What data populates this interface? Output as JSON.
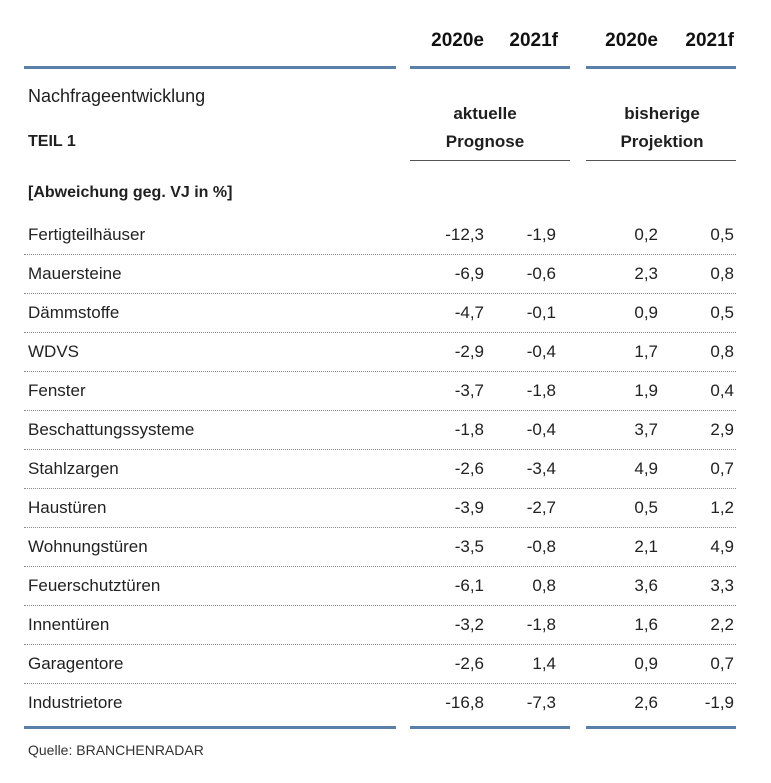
{
  "columns": {
    "current": {
      "year1": "2020e",
      "year2": "2021f",
      "label_line1": "aktuelle",
      "label_line2": "Prognose"
    },
    "previous": {
      "year1": "2020e",
      "year2": "2021f",
      "label_line1": "bisherige",
      "label_line2": "Projektion"
    }
  },
  "title": "Nachfrageentwicklung",
  "subtitle": "TEIL 1",
  "unit_label": "[Abweichung geg. VJ in %]",
  "rows": [
    {
      "label": "Fertigteilhäuser",
      "c2020": "-12,3",
      "c2021": "-1,9",
      "p2020": "0,2",
      "p2021": "0,5"
    },
    {
      "label": "Mauersteine",
      "c2020": "-6,9",
      "c2021": "-0,6",
      "p2020": "2,3",
      "p2021": "0,8"
    },
    {
      "label": "Dämmstoffe",
      "c2020": "-4,7",
      "c2021": "-0,1",
      "p2020": "0,9",
      "p2021": "0,5"
    },
    {
      "label": "WDVS",
      "c2020": "-2,9",
      "c2021": "-0,4",
      "p2020": "1,7",
      "p2021": "0,8"
    },
    {
      "label": "Fenster",
      "c2020": "-3,7",
      "c2021": "-1,8",
      "p2020": "1,9",
      "p2021": "0,4"
    },
    {
      "label": "Beschattungssysteme",
      "c2020": "-1,8",
      "c2021": "-0,4",
      "p2020": "3,7",
      "p2021": "2,9"
    },
    {
      "label": "Stahlzargen",
      "c2020": "-2,6",
      "c2021": "-3,4",
      "p2020": "4,9",
      "p2021": "0,7"
    },
    {
      "label": "Haustüren",
      "c2020": "-3,9",
      "c2021": "-2,7",
      "p2020": "0,5",
      "p2021": "1,2"
    },
    {
      "label": "Wohnungstüren",
      "c2020": "-3,5",
      "c2021": "-0,8",
      "p2020": "2,1",
      "p2021": "4,9"
    },
    {
      "label": "Feuerschutztüren",
      "c2020": "-6,1",
      "c2021": "0,8",
      "p2020": "3,6",
      "p2021": "3,3"
    },
    {
      "label": "Innentüren",
      "c2020": "-3,2",
      "c2021": "-1,8",
      "p2020": "1,6",
      "p2021": "2,2"
    },
    {
      "label": "Garagentore",
      "c2020": "-2,6",
      "c2021": "1,4",
      "p2020": "0,9",
      "p2021": "0,7"
    },
    {
      "label": "Industrietore",
      "c2020": "-16,8",
      "c2021": "-7,3",
      "p2020": "2,6",
      "p2021": "-1,9"
    }
  ],
  "source": "Quelle: BRANCHENRADAR",
  "colors": {
    "rule_blue": "#5a7fa8"
  }
}
